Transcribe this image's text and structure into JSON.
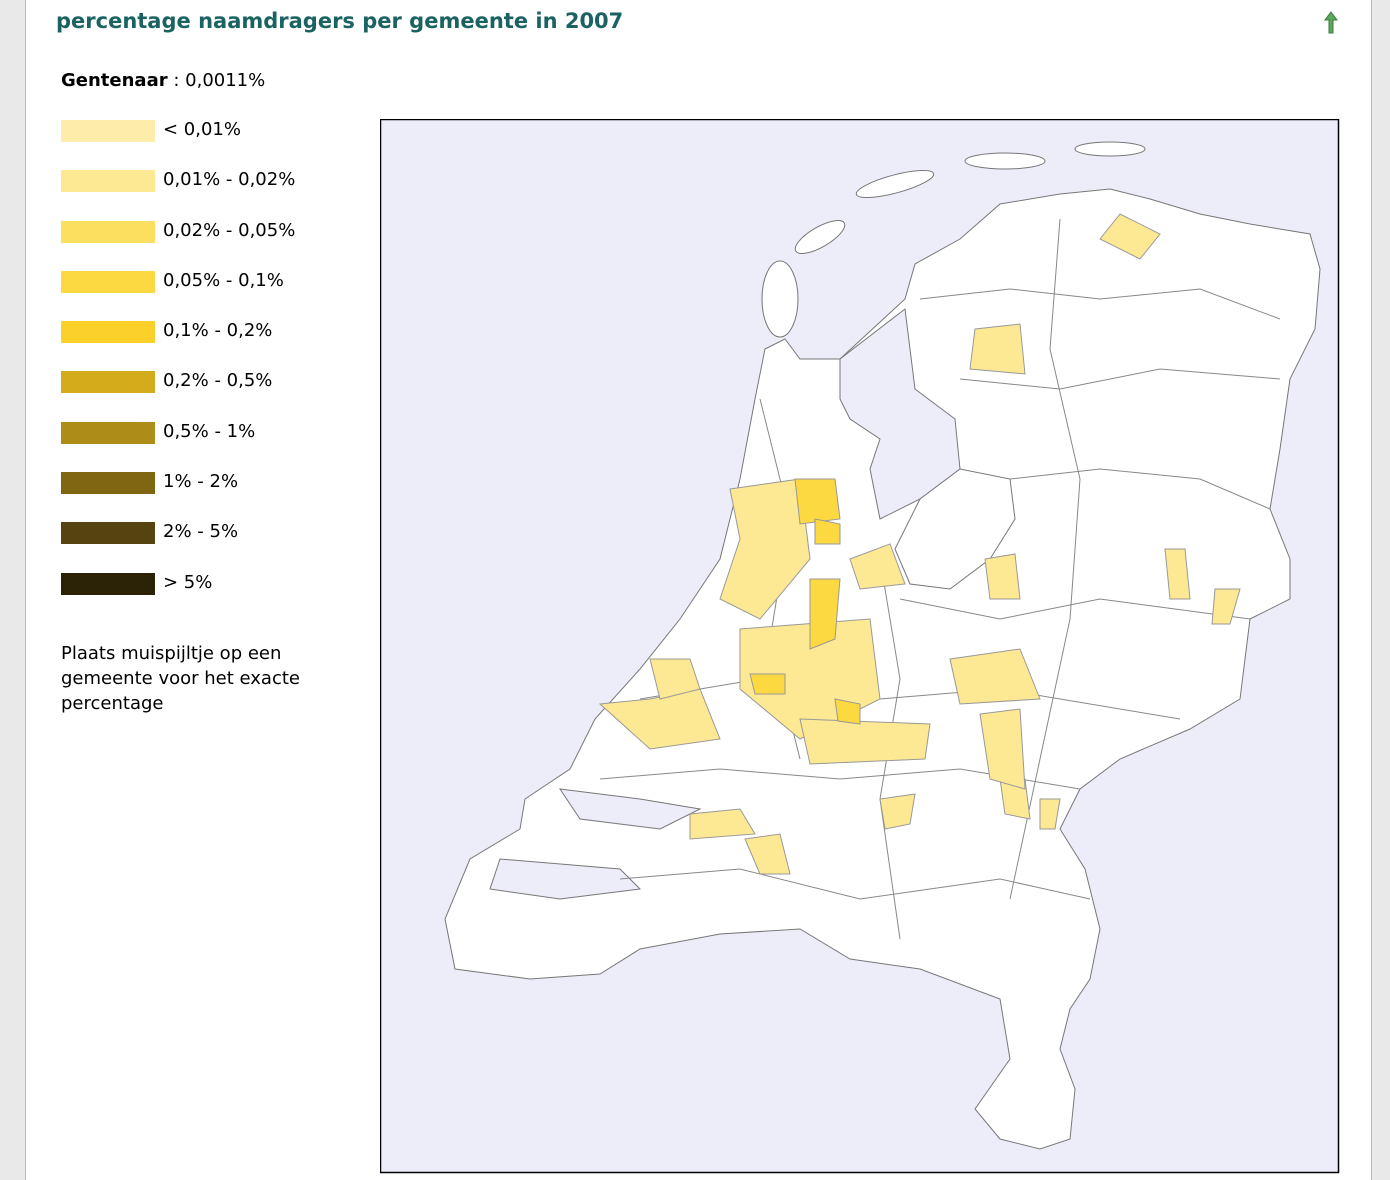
{
  "header": {
    "title": "percentage naamdragers per gemeente in 2007"
  },
  "selected": {
    "name": "Gentenaar",
    "separator": ":",
    "percentage": "0,0011%"
  },
  "legend": [
    {
      "label": "< 0,01%",
      "color": "#fdedab"
    },
    {
      "label": "0,01% - 0,02%",
      "color": "#fde893"
    },
    {
      "label": "0,02% - 0,05%",
      "color": "#fddf60"
    },
    {
      "label": "0,05% - 0,1%",
      "color": "#fcd940"
    },
    {
      "label": "0,1% - 0,2%",
      "color": "#fcd02a"
    },
    {
      "label": "0,2% - 0,5%",
      "color": "#d4ab1a"
    },
    {
      "label": "0,5% - 1%",
      "color": "#ad8c17"
    },
    {
      "label": "1% - 2%",
      "color": "#806612"
    },
    {
      "label": "2% - 5%",
      "color": "#554410"
    },
    {
      "label": "> 5%",
      "color": "#2c2306"
    }
  ],
  "note": "Plaats muispijltje op een gemeente voor het exacte percentage"
}
